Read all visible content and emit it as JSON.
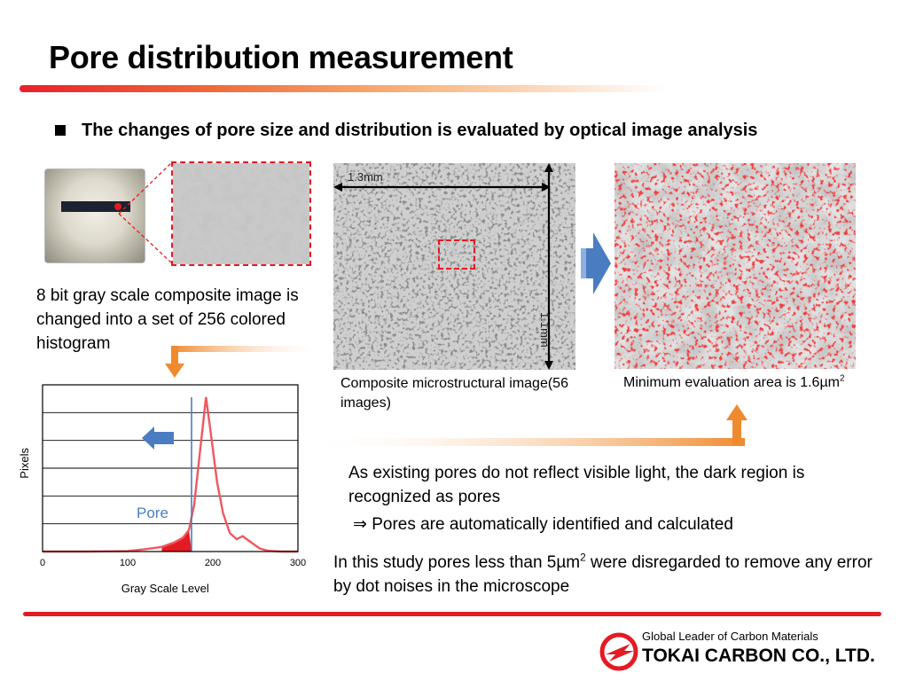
{
  "title": "Pore distribution measurement",
  "bullet": "The changes of pore size and distribution is evaluated by optical image analysis",
  "dimensions": {
    "horizontal": "1.3mm",
    "vertical": "1.1mm"
  },
  "captions": {
    "composite": "Composite microstructural image(56 images)",
    "min_area_prefix": "Minimum evaluation area is 1.6µm",
    "min_area_sup": "2"
  },
  "histogram_desc": "8 bit gray scale composite image is changed into a set of 256 colored histogram",
  "pores_text_1": "As existing pores do not reflect visible light, the dark region is recognized as pores",
  "pores_text_2": "⇒ Pores are automatically identified and calculated",
  "study_text": {
    "part1": "In this study pores less than 5µm",
    "sup": "2",
    "part2": " were disregarded to remove any error by dot noises in the microscope"
  },
  "footer": {
    "tagline": "Global Leader of Carbon Materials",
    "company": "TOKAI CARBON CO., LTD."
  },
  "colors": {
    "accent_red": "#e31b23",
    "arrow_orange": "#f08a2e",
    "arrow_blue": "#4a7cc2"
  },
  "chart_data": {
    "type": "line",
    "xlabel": "Gray Scale Level",
    "ylabel": "Pixels",
    "xlim": [
      0,
      300
    ],
    "xticks": [
      0,
      100,
      200,
      300
    ],
    "threshold": 175,
    "annotation": "Pore",
    "grid": true,
    "x": [
      0,
      50,
      100,
      120,
      140,
      155,
      165,
      172,
      178,
      185,
      192,
      198,
      205,
      212,
      220,
      228,
      235,
      245,
      255,
      265,
      280,
      300
    ],
    "y": [
      0,
      0,
      0.3,
      1.5,
      3,
      6,
      9,
      14,
      30,
      65,
      100,
      75,
      45,
      25,
      12,
      8,
      10,
      6,
      2,
      0.5,
      0,
      0
    ]
  }
}
